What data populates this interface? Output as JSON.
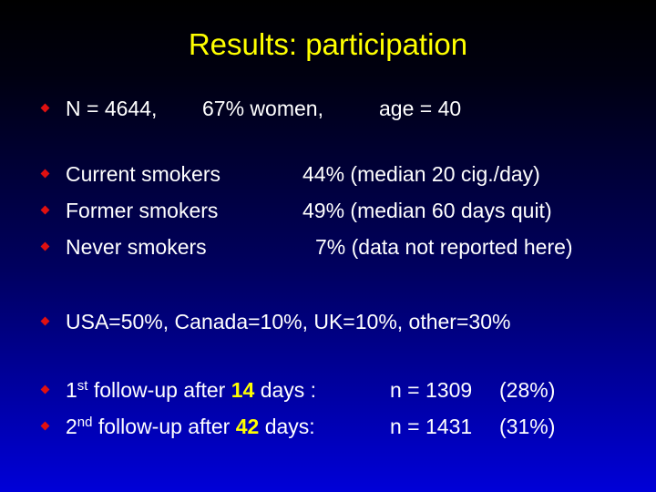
{
  "title": "Results: participation",
  "line1": {
    "n": "N = 4644,",
    "women": "67% women,",
    "age": "age = 40"
  },
  "smokers": [
    {
      "label": "Current smokers",
      "value": "44% (median 20 cig./day)"
    },
    {
      "label": "Former smokers",
      "value": "49% (median 60 days quit)"
    },
    {
      "label": "Never smokers",
      "value": "7% (data not reported here)"
    }
  ],
  "countries": "USA=50%, Canada=10%, UK=10%, other=30%",
  "followups": [
    {
      "ord": "1",
      "sup": "st",
      "pre": "follow-up after",
      "days": "14",
      "post": "days :",
      "n": "n = 1309",
      "pct": "(28%)"
    },
    {
      "ord": "2",
      "sup": "nd",
      "pre": "follow-up after",
      "days": "42",
      "post": "days:",
      "n": "n = 1431",
      "pct": "(31%)"
    }
  ],
  "colors": {
    "title": "#ffff00",
    "bullet": "#e01010",
    "text": "#ffffff"
  }
}
